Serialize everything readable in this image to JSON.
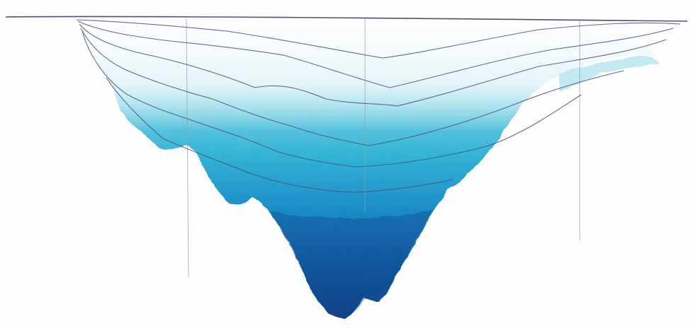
{
  "artwork": {
    "paper_color": "#ffffff",
    "pencil_color": "#4a4f7a",
    "guide_color": "#9a9aa8",
    "water_gradient": [
      "#bfeef4",
      "#7fd6e6",
      "#2fb3d6",
      "#1a8ec9",
      "#0f63ac",
      "#0b3f86"
    ]
  }
}
